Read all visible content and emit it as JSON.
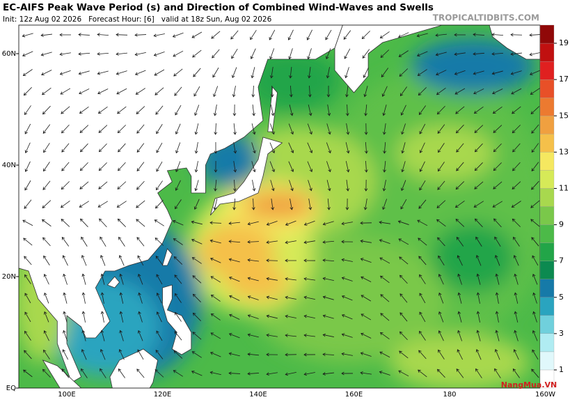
{
  "header": {
    "title": "EC-AIFS Peak Wave Period (s) and Direction of Combined Wind-Waves and Swells",
    "subtitle": "Init: 12z Aug 02 2026   Forecast Hour: [6]   valid at 18z Sun, Aug 02 2026",
    "credit": "TROPICALTIDBITS.COM"
  },
  "map": {
    "lat_labels": [
      "60N",
      "40N",
      "20N",
      "EQ"
    ],
    "lon_labels": [
      "100E",
      "120E",
      "140E",
      "160E",
      "180",
      "160W"
    ]
  },
  "colorbar": {
    "lim": [
      0,
      20
    ],
    "ticks": [
      1,
      3,
      5,
      7,
      9,
      11,
      13,
      15,
      17,
      19
    ],
    "colors": [
      "#ffffff",
      "#e0f8fb",
      "#b0ecf2",
      "#70d0dc",
      "#2aa4bf",
      "#167aa8",
      "#0c8a50",
      "#22a548",
      "#4cba48",
      "#7ac84a",
      "#a8d84e",
      "#d6ea58",
      "#f5e860",
      "#f5c04a",
      "#f0a040",
      "#ec7a30",
      "#e85028",
      "#e02020",
      "#c01010",
      "#900808"
    ]
  },
  "watermark": "NangMua.VN"
}
